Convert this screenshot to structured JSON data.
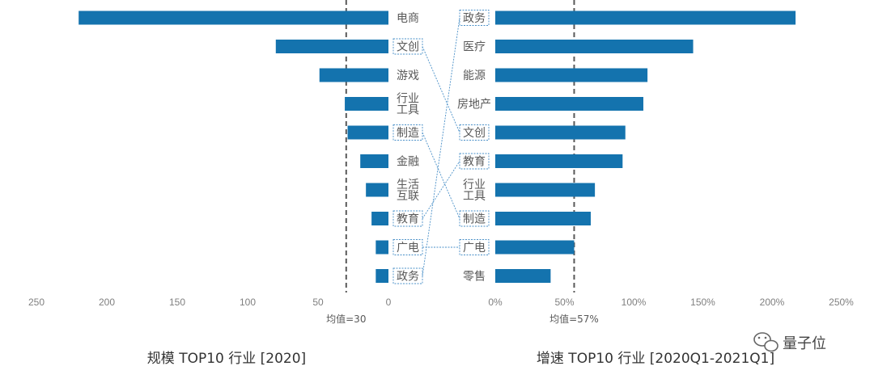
{
  "chart_data": [
    {
      "type": "bar",
      "orientation": "horizontal",
      "direction": "right-to-left",
      "title": "规模 TOP10 行业 [2020]",
      "categories": [
        "电商",
        "文创",
        "游戏",
        "行业\n工具",
        "制造",
        "金融",
        "生活\n互联",
        "教育",
        "广电",
        "政务"
      ],
      "values": [
        220,
        80,
        49,
        31,
        29,
        20,
        16,
        12,
        9,
        9
      ],
      "xlim": [
        0,
        250
      ],
      "ticks": [
        250,
        200,
        150,
        100,
        50,
        0
      ],
      "tick_labels": [
        "250",
        "200",
        "150",
        "100",
        "50",
        "0"
      ],
      "mean": 30,
      "mean_label": "均值=30",
      "boxed_categories": [
        "文创",
        "制造",
        "教育",
        "广电",
        "政务"
      ],
      "color": "#1473ae"
    },
    {
      "type": "bar",
      "orientation": "horizontal",
      "direction": "left-to-right",
      "title": "增速 TOP10 行业 [2020Q1-2021Q1]",
      "categories": [
        "政务",
        "医疗",
        "能源",
        "房地产",
        "文创",
        "教育",
        "行业\n工具",
        "制造",
        "广电",
        "零售"
      ],
      "values": [
        217,
        143,
        110,
        107,
        94,
        92,
        72,
        69,
        57,
        40
      ],
      "xlim": [
        0,
        250
      ],
      "ticks": [
        0,
        50,
        100,
        150,
        200,
        250
      ],
      "tick_labels": [
        "0%",
        "50%",
        "100%",
        "150%",
        "200%",
        "250%"
      ],
      "mean": 57,
      "mean_label": "均值=57%",
      "boxed_categories": [
        "政务",
        "文创",
        "教育",
        "制造",
        "广电"
      ],
      "color": "#1473ae"
    }
  ],
  "links": [
    {
      "from": "文创",
      "to": "文创"
    },
    {
      "from": "制造",
      "to": "制造"
    },
    {
      "from": "教育",
      "to": "教育"
    },
    {
      "from": "广电",
      "to": "广电"
    },
    {
      "from": "政务",
      "to": "政务"
    }
  ],
  "watermark": {
    "text": "量子位",
    "icon": "wechat-icon"
  },
  "colors": {
    "bar": "#1473ae",
    "link": "#4a90c8",
    "mean_line": "#595959"
  }
}
